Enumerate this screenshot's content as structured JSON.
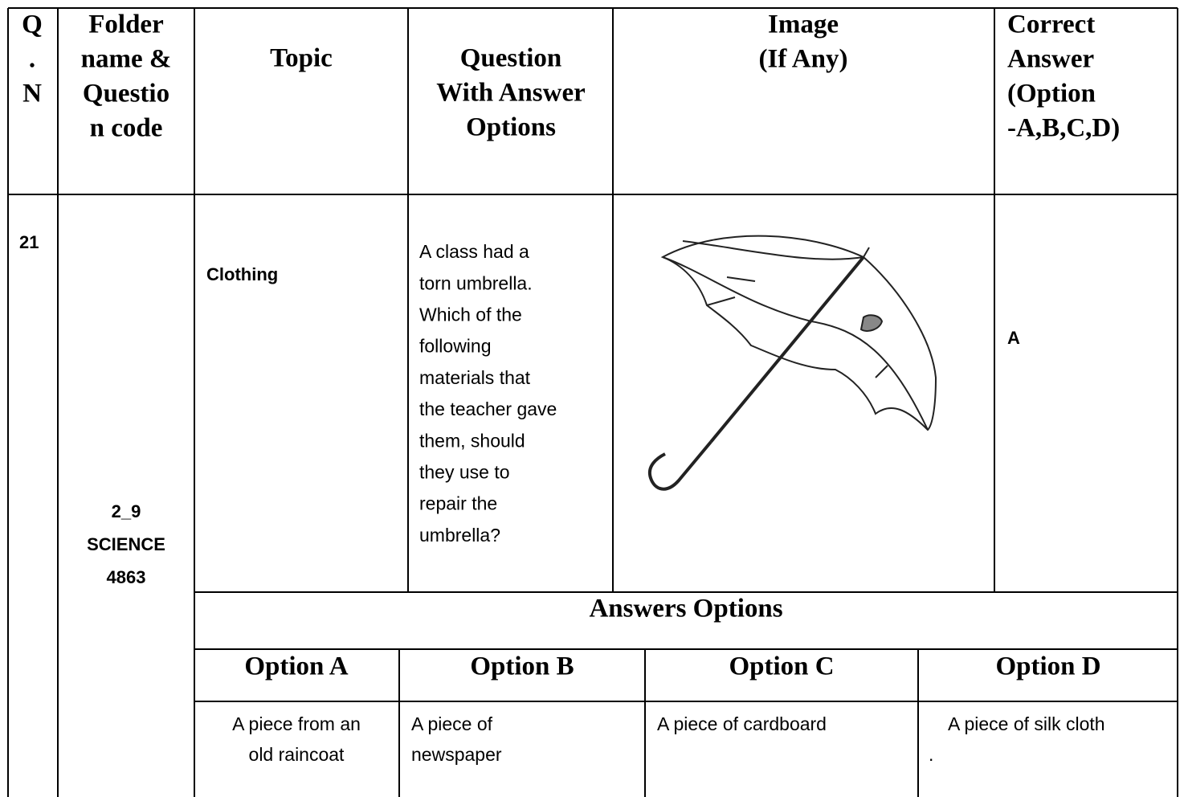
{
  "header": {
    "qn": [
      "Q",
      ".",
      "N"
    ],
    "folder": [
      "Folder",
      "name &",
      "Questio",
      "n code"
    ],
    "topic": "Topic",
    "question": [
      "Question",
      "With Answer",
      "Options"
    ],
    "image": [
      "Image",
      "(If Any)"
    ],
    "answer": [
      "Correct",
      "Answer",
      "(Option",
      "-A,B,C,D)"
    ]
  },
  "row": {
    "qn": "21",
    "folder": [
      "2_9",
      "SCIENCE",
      "4863"
    ],
    "topic": "Clothing",
    "question": [
      "A class had a",
      "torn umbrella.",
      "Which of the",
      "following",
      "materials that",
      "the teacher gave",
      "them, should",
      "they  use  to",
      "repair the",
      "umbrella?"
    ],
    "answer": "A"
  },
  "options": {
    "title": "Answers Options",
    "items": [
      {
        "label": "Option A",
        "text": [
          "A piece from an",
          "old raincoat"
        ]
      },
      {
        "label": "Option B",
        "text": [
          "A piece of",
          "newspaper"
        ]
      },
      {
        "label": "Option C",
        "text": [
          "A piece of cardboard"
        ]
      },
      {
        "label": "Option D",
        "text": [
          "A piece of silk cloth",
          "."
        ]
      }
    ]
  }
}
